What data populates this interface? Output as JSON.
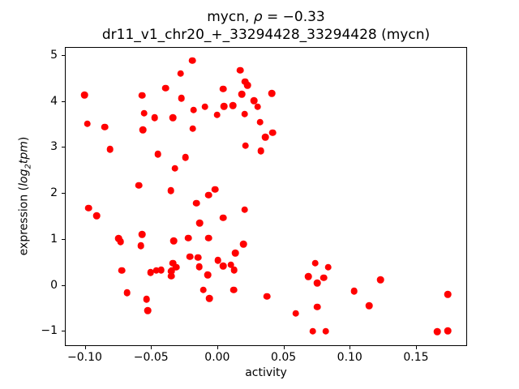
{
  "chart": {
    "title_prefix": "mycn, ",
    "title_rho": "ρ",
    "title_value": " = −0.33",
    "subtitle": "dr11_v1_chr20_+_33294428_33294428 (mycn)",
    "xlabel": "activity",
    "ylabel_prefix": "expression (",
    "ylabel_log": "log",
    "ylabel_sub": "2",
    "ylabel_tpm": "tpm",
    "ylabel_suffix": ")"
  },
  "chart_data": {
    "type": "scatter",
    "title": "mycn, ρ = −0.33",
    "subtitle": "dr11_v1_chr20_+_33294428_33294428 (mycn)",
    "xlabel": "activity",
    "ylabel": "expression (log2tpm)",
    "correlation_rho": -0.33,
    "marker_color": "#ff0000",
    "axis_color": "#000000",
    "grid": false,
    "legend": false,
    "xlim": [
      -0.115,
      0.1886
    ],
    "ylim": [
      -1.33,
      5.18
    ],
    "x_ticks": [
      -0.1,
      -0.05,
      0.0,
      0.05,
      0.1,
      0.15
    ],
    "x_tick_labels": [
      "−0.10",
      "−0.05",
      "0.00",
      "0.05",
      "0.10",
      "0.15"
    ],
    "y_ticks": [
      5,
      4,
      3,
      2,
      1,
      0,
      -1
    ],
    "y_tick_labels": [
      "5",
      "4",
      "3",
      "2",
      "1",
      "0",
      "−1"
    ],
    "points": [
      [
        -0.1007,
        4.15
      ],
      [
        -0.0987,
        3.52
      ],
      [
        -0.0854,
        3.45
      ],
      [
        -0.0813,
        2.96
      ],
      [
        -0.057,
        4.14
      ],
      [
        -0.0556,
        3.75
      ],
      [
        -0.0564,
        3.39
      ],
      [
        -0.0597,
        2.17
      ],
      [
        -0.0477,
        3.65
      ],
      [
        -0.045,
        2.85
      ],
      [
        -0.0393,
        4.3
      ],
      [
        -0.0336,
        3.65
      ],
      [
        -0.0354,
        2.05
      ],
      [
        -0.0323,
        2.54
      ],
      [
        -0.0278,
        4.62
      ],
      [
        -0.0274,
        4.08
      ],
      [
        -0.0243,
        2.78
      ],
      [
        -0.0191,
        4.9
      ],
      [
        -0.0182,
        3.82
      ],
      [
        -0.0188,
        3.41
      ],
      [
        -0.0095,
        3.89
      ],
      [
        -0.0067,
        1.96
      ],
      [
        -0.0018,
        2.08
      ],
      [
        -0.0002,
        3.71
      ],
      [
        0.0045,
        4.28
      ],
      [
        0.0049,
        3.9
      ],
      [
        0.0118,
        3.92
      ],
      [
        0.0172,
        4.69
      ],
      [
        0.0184,
        4.17
      ],
      [
        0.0207,
        3.73
      ],
      [
        0.0209,
        4.44
      ],
      [
        0.0227,
        4.36
      ],
      [
        0.0213,
        3.04
      ],
      [
        0.0278,
        4.02
      ],
      [
        0.0305,
        3.89
      ],
      [
        0.0324,
        3.55
      ],
      [
        0.033,
        2.92
      ],
      [
        0.0363,
        3.22
      ],
      [
        0.0414,
        4.18
      ],
      [
        0.0419,
        3.32
      ],
      [
        -0.0977,
        1.67
      ],
      [
        -0.0915,
        1.5
      ],
      [
        -0.0748,
        1.01
      ],
      [
        -0.0735,
        0.94
      ],
      [
        -0.0572,
        1.1
      ],
      [
        -0.058,
        0.85
      ],
      [
        -0.0723,
        0.31
      ],
      [
        -0.0685,
        -0.18
      ],
      [
        -0.0538,
        -0.32
      ],
      [
        -0.0527,
        -0.57
      ],
      [
        -0.0507,
        0.26
      ],
      [
        -0.0464,
        0.31
      ],
      [
        -0.0427,
        0.32
      ],
      [
        -0.0354,
        0.29
      ],
      [
        -0.0346,
        0.3
      ],
      [
        -0.0337,
        0.47
      ],
      [
        -0.0314,
        0.38
      ],
      [
        -0.0349,
        0.18
      ],
      [
        -0.0333,
        0.95
      ],
      [
        -0.0221,
        1.02
      ],
      [
        -0.0207,
        0.61
      ],
      [
        -0.016,
        1.78
      ],
      [
        -0.0148,
        0.59
      ],
      [
        -0.0135,
        1.34
      ],
      [
        -0.0139,
        0.39
      ],
      [
        -0.0075,
        0.21
      ],
      [
        -0.0067,
        1.02
      ],
      [
        -0.0108,
        -0.12
      ],
      [
        -0.0061,
        -0.31
      ],
      [
        0.0004,
        0.53
      ],
      [
        0.0045,
        1.46
      ],
      [
        0.0045,
        0.41
      ],
      [
        0.0102,
        0.43
      ],
      [
        0.0126,
        0.32
      ],
      [
        0.0136,
        0.69
      ],
      [
        0.0122,
        -0.12
      ],
      [
        0.0197,
        0.88
      ],
      [
        0.0207,
        1.64
      ],
      [
        0.0376,
        -0.26
      ],
      [
        0.0741,
        0.47
      ],
      [
        0.0839,
        0.38
      ],
      [
        0.0688,
        0.17
      ],
      [
        0.0807,
        0.15
      ],
      [
        0.0758,
        0.03
      ],
      [
        0.1037,
        -0.14
      ],
      [
        0.1235,
        0.1
      ],
      [
        0.1148,
        -0.46
      ],
      [
        0.0758,
        -0.49
      ],
      [
        0.0594,
        -0.63
      ],
      [
        0.0723,
        -1.02
      ],
      [
        0.0821,
        -1.02
      ],
      [
        0.1665,
        -1.03
      ],
      [
        0.1747,
        -1.01
      ],
      [
        0.1745,
        -0.22
      ]
    ]
  }
}
